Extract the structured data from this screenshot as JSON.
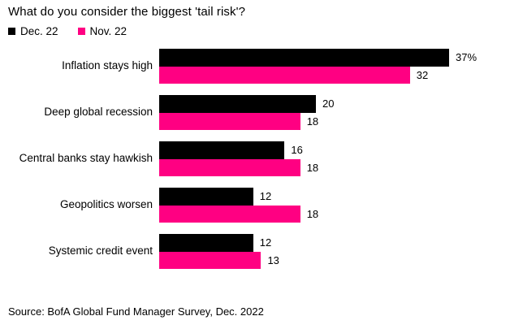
{
  "title": "What do you consider the biggest 'tail risk'?",
  "source": "Source: BofA Global Fund Manager Survey, Dec. 2022",
  "colors": {
    "background": "#ffffff",
    "text": "#000000",
    "dec_series": "#000000",
    "nov_series": "#ff0082"
  },
  "chart_data": {
    "type": "bar",
    "orientation": "horizontal",
    "title": "What do you consider the biggest 'tail risk'?",
    "categories": [
      "Inflation stays high",
      "Deep global recession",
      "Central banks stay hawkish",
      "Geopolitics worsen",
      "Systemic credit event"
    ],
    "series": [
      {
        "name": "Dec. 22",
        "color": "#000000",
        "values": [
          37,
          20,
          16,
          12,
          12
        ],
        "labels": [
          "37%",
          "20",
          "16",
          "12",
          "12"
        ]
      },
      {
        "name": "Nov. 22",
        "color": "#ff0082",
        "values": [
          32,
          18,
          18,
          18,
          13
        ],
        "labels": [
          "32",
          "18",
          "18",
          "18",
          "13"
        ]
      }
    ],
    "unit": "%",
    "xlim": [
      0,
      40
    ],
    "grid": false,
    "legend_position": "top-left",
    "value_labels": "outside-end"
  }
}
